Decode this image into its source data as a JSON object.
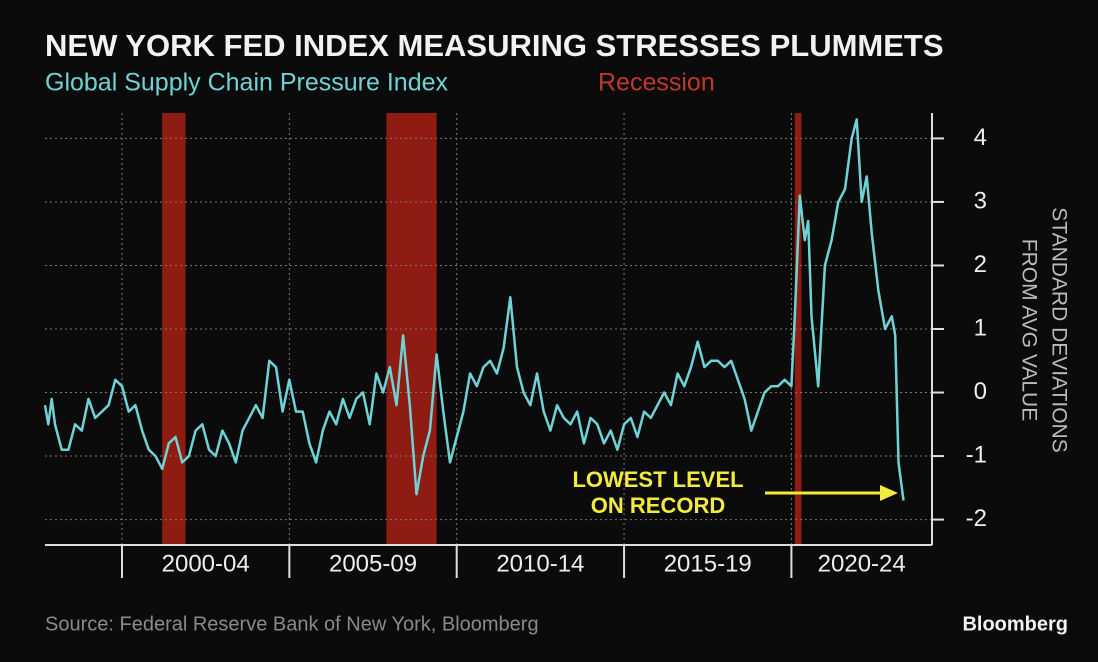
{
  "chart_data": {
    "type": "line",
    "title": "NEW YORK FED INDEX MEASURING STRESSES PLUMMETS",
    "series": [
      {
        "name": "Global Supply Chain Pressure Index",
        "color": "#6fd3d6",
        "x": [
          1997.7,
          1997.8,
          1997.9,
          1998.0,
          1998.2,
          1998.4,
          1998.6,
          1998.8,
          1999.0,
          1999.2,
          1999.4,
          1999.6,
          1999.8,
          2000.0,
          2000.2,
          2000.4,
          2000.6,
          2000.8,
          2001.0,
          2001.2,
          2001.4,
          2001.6,
          2001.8,
          2002.0,
          2002.2,
          2002.4,
          2002.6,
          2002.8,
          2003.0,
          2003.2,
          2003.4,
          2003.6,
          2003.8,
          2004.0,
          2004.2,
          2004.4,
          2004.6,
          2004.8,
          2005.0,
          2005.2,
          2005.4,
          2005.6,
          2005.8,
          2006.0,
          2006.2,
          2006.4,
          2006.6,
          2006.8,
          2007.0,
          2007.2,
          2007.4,
          2007.6,
          2007.8,
          2008.0,
          2008.2,
          2008.4,
          2008.6,
          2008.8,
          2009.0,
          2009.2,
          2009.4,
          2009.6,
          2009.8,
          2010.0,
          2010.2,
          2010.4,
          2010.6,
          2010.8,
          2011.0,
          2011.2,
          2011.4,
          2011.6,
          2011.8,
          2012.0,
          2012.2,
          2012.4,
          2012.6,
          2012.8,
          2013.0,
          2013.2,
          2013.4,
          2013.6,
          2013.8,
          2014.0,
          2014.2,
          2014.4,
          2014.6,
          2014.8,
          2015.0,
          2015.2,
          2015.4,
          2015.6,
          2015.8,
          2016.0,
          2016.2,
          2016.4,
          2016.6,
          2016.8,
          2017.0,
          2017.2,
          2017.4,
          2017.6,
          2017.8,
          2018.0,
          2018.2,
          2018.4,
          2018.6,
          2018.8,
          2019.0,
          2019.2,
          2019.4,
          2019.6,
          2019.8,
          2020.0,
          2020.1,
          2020.25,
          2020.4,
          2020.5,
          2020.6,
          2020.8,
          2021.0,
          2021.2,
          2021.4,
          2021.6,
          2021.8,
          2021.95,
          2022.1,
          2022.25,
          2022.4,
          2022.6,
          2022.8,
          2023.0,
          2023.1,
          2023.2,
          2023.35
        ],
        "values": [
          -0.2,
          -0.5,
          -0.1,
          -0.5,
          -0.9,
          -0.9,
          -0.5,
          -0.6,
          -0.1,
          -0.4,
          -0.3,
          -0.2,
          0.2,
          0.1,
          -0.3,
          -0.2,
          -0.6,
          -0.9,
          -1.0,
          -1.2,
          -0.8,
          -0.7,
          -1.1,
          -1.0,
          -0.6,
          -0.5,
          -0.9,
          -1.0,
          -0.6,
          -0.8,
          -1.1,
          -0.6,
          -0.4,
          -0.2,
          -0.4,
          0.5,
          0.4,
          -0.3,
          0.2,
          -0.3,
          -0.3,
          -0.8,
          -1.1,
          -0.6,
          -0.3,
          -0.5,
          -0.1,
          -0.4,
          -0.1,
          0.0,
          -0.5,
          0.3,
          0.0,
          0.4,
          -0.2,
          0.9,
          -0.2,
          -1.6,
          -1.0,
          -0.6,
          0.6,
          -0.3,
          -1.1,
          -0.7,
          -0.3,
          0.3,
          0.1,
          0.4,
          0.5,
          0.3,
          0.7,
          1.5,
          0.4,
          0.0,
          -0.2,
          0.3,
          -0.3,
          -0.6,
          -0.2,
          -0.4,
          -0.5,
          -0.3,
          -0.8,
          -0.4,
          -0.5,
          -0.8,
          -0.6,
          -0.9,
          -0.5,
          -0.4,
          -0.7,
          -0.3,
          -0.4,
          -0.2,
          0.0,
          -0.2,
          0.3,
          0.1,
          0.4,
          0.8,
          0.4,
          0.5,
          0.5,
          0.4,
          0.5,
          0.2,
          -0.1,
          -0.6,
          -0.3,
          0.0,
          0.1,
          0.1,
          0.2,
          0.1,
          1.2,
          3.1,
          2.4,
          2.7,
          1.2,
          0.1,
          2.0,
          2.4,
          3.0,
          3.2,
          4.0,
          4.3,
          3.0,
          3.4,
          2.5,
          1.6,
          1.0,
          1.2,
          0.9,
          -1.1,
          -1.7
        ]
      }
    ],
    "recession_label": "Recession",
    "recession_color": "#8e1c13",
    "recessions": [
      [
        2001.2,
        2001.9
      ],
      [
        2007.9,
        2009.4
      ],
      [
        2020.1,
        2020.3
      ]
    ],
    "categories": [
      "2000-04",
      "2005-09",
      "2010-14",
      "2015-19",
      "2020-24"
    ],
    "category_edges": [
      2000,
      2005,
      2010,
      2015,
      2020,
      2025
    ],
    "xlim": [
      1997.7,
      2024.2
    ],
    "ylim": [
      -2.4,
      4.4
    ],
    "yticks": [
      -2,
      -1,
      0,
      1,
      2,
      3,
      4
    ],
    "ylabel": [
      "STANDARD DEVIATIONS",
      "FROM AVG VALUE"
    ],
    "grid": true,
    "annotation": {
      "lines": [
        "LOWEST LEVEL",
        "ON RECORD"
      ],
      "color": "#f2ea3c"
    },
    "source": "Source: Federal Reserve Bank of New York, Bloomberg",
    "brand": "Bloomberg"
  }
}
